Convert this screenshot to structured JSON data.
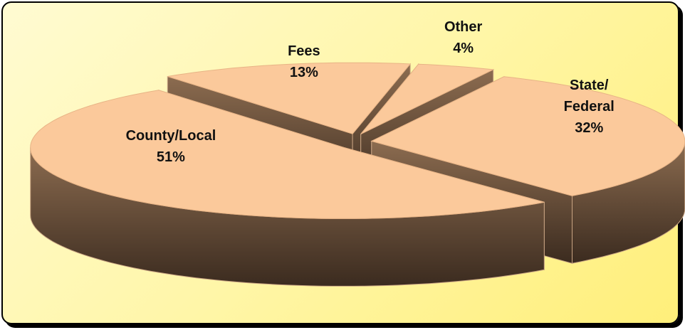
{
  "chart_data": {
    "type": "pie3d",
    "categories": [
      "State/ Federal",
      "County/Local",
      "Fees",
      "Other"
    ],
    "values": [
      32,
      51,
      13,
      4
    ],
    "value_labels": [
      "32%",
      "51%",
      "13%",
      "4%"
    ],
    "color": "#fbc99b",
    "side_color": "#6e533d"
  }
}
